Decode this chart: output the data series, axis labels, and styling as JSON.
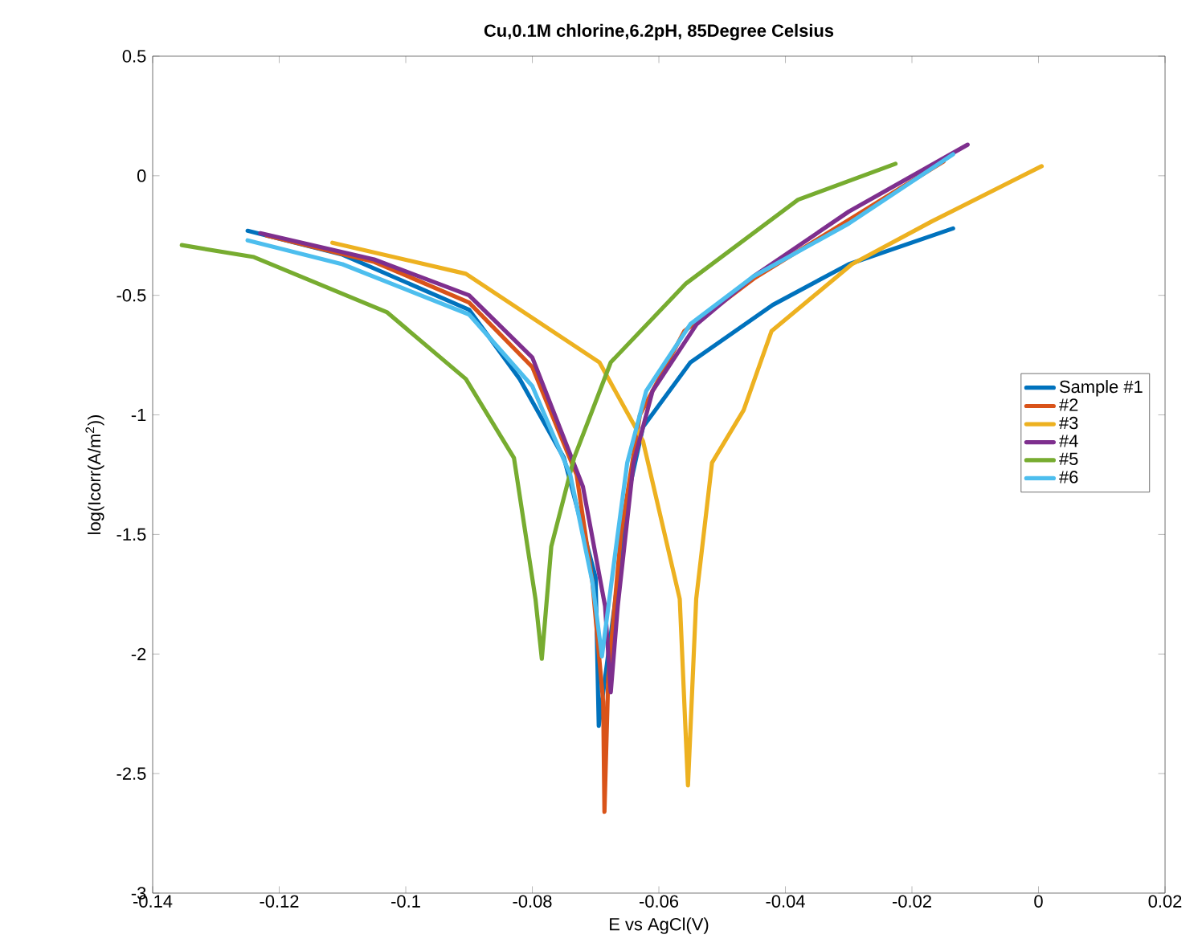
{
  "chart_data": {
    "type": "line",
    "title": "Cu,0.1M chlorine,6.2pH, 85Degree Celsius",
    "xlabel": "E vs AgCl(V)",
    "ylabel": "log(Icorr(A/m$^{2}$))",
    "xlim": [
      -0.14,
      0.02
    ],
    "ylim": [
      -3,
      0.5
    ],
    "xticks": [
      -0.14,
      -0.12,
      -0.1,
      -0.08,
      -0.06,
      -0.04,
      -0.02,
      0,
      0.02
    ],
    "yticks": [
      -3,
      -2.5,
      -2,
      -1.5,
      -1,
      -0.5,
      0,
      0.5
    ],
    "grid": false,
    "legend": "right",
    "marker": "none",
    "line_style": "solid",
    "series": [
      {
        "name": "Sample #1",
        "color": "#0072bd",
        "x": [
          -0.125,
          -0.11,
          -0.09,
          -0.082,
          -0.075,
          -0.07,
          -0.0695,
          -0.067,
          -0.065,
          -0.0625,
          -0.055,
          -0.042,
          -0.03,
          -0.0135
        ],
        "values": [
          -0.23,
          -0.33,
          -0.56,
          -0.85,
          -1.18,
          -1.68,
          -2.3,
          -1.8,
          -1.35,
          -1.05,
          -0.78,
          -0.54,
          -0.37,
          -0.22
        ]
      },
      {
        "name": "#2",
        "color": "#d95319",
        "x": [
          -0.122,
          -0.105,
          -0.09,
          -0.08,
          -0.073,
          -0.0705,
          -0.0688,
          -0.0686,
          -0.068,
          -0.066,
          -0.063,
          -0.056,
          -0.045,
          -0.03,
          -0.015
        ],
        "values": [
          -0.25,
          -0.36,
          -0.53,
          -0.8,
          -1.25,
          -1.7,
          -2.2,
          -2.66,
          -2.1,
          -1.5,
          -1.0,
          -0.65,
          -0.43,
          null,
          0.06
        ]
      },
      {
        "name": "#3",
        "color": "#edb120",
        "x": [
          -0.1116,
          -0.0905,
          -0.0694,
          -0.0625,
          -0.0567,
          -0.0554,
          -0.0541,
          -0.0516,
          -0.0466,
          -0.0422,
          -0.0295,
          -0.0168,
          0.0005
        ],
        "values": [
          -0.28,
          -0.41,
          -0.78,
          -1.11,
          -1.77,
          -2.55,
          -1.77,
          -1.2,
          -0.98,
          -0.65,
          -0.37,
          -0.19,
          0.04
        ]
      },
      {
        "name": "#4",
        "color": "#7e2f8e",
        "x": [
          -0.123,
          -0.105,
          -0.09,
          -0.08,
          -0.072,
          -0.0685,
          -0.0676,
          -0.0665,
          -0.064,
          -0.061,
          -0.054,
          -0.045,
          -0.03,
          -0.0112
        ],
        "values": [
          -0.24,
          -0.35,
          -0.5,
          -0.76,
          -1.3,
          -1.8,
          -2.16,
          -1.8,
          -1.2,
          -0.9,
          -0.62,
          -0.42,
          -0.15,
          0.13
        ]
      },
      {
        "name": "#5",
        "color": "#77ac30",
        "x": [
          -0.1354,
          -0.124,
          -0.103,
          -0.0905,
          -0.0829,
          -0.0795,
          -0.0785,
          -0.077,
          -0.0734,
          -0.0676,
          -0.0557,
          -0.038,
          -0.0226
        ],
        "values": [
          -0.29,
          -0.34,
          -0.57,
          -0.85,
          -1.18,
          -1.77,
          -2.02,
          -1.55,
          -1.18,
          -0.78,
          -0.45,
          -0.1,
          0.05
        ]
      },
      {
        "name": "#6",
        "color": "#4dbeee",
        "x": [
          -0.125,
          -0.11,
          -0.09,
          -0.08,
          -0.074,
          -0.0705,
          -0.069,
          -0.067,
          -0.065,
          -0.062,
          -0.055,
          -0.045,
          -0.03,
          -0.0135
        ],
        "values": [
          -0.27,
          -0.37,
          -0.58,
          -0.88,
          -1.25,
          -1.7,
          -2.01,
          -1.6,
          -1.2,
          -0.9,
          -0.62,
          -0.42,
          -0.2,
          0.09
        ]
      }
    ]
  }
}
